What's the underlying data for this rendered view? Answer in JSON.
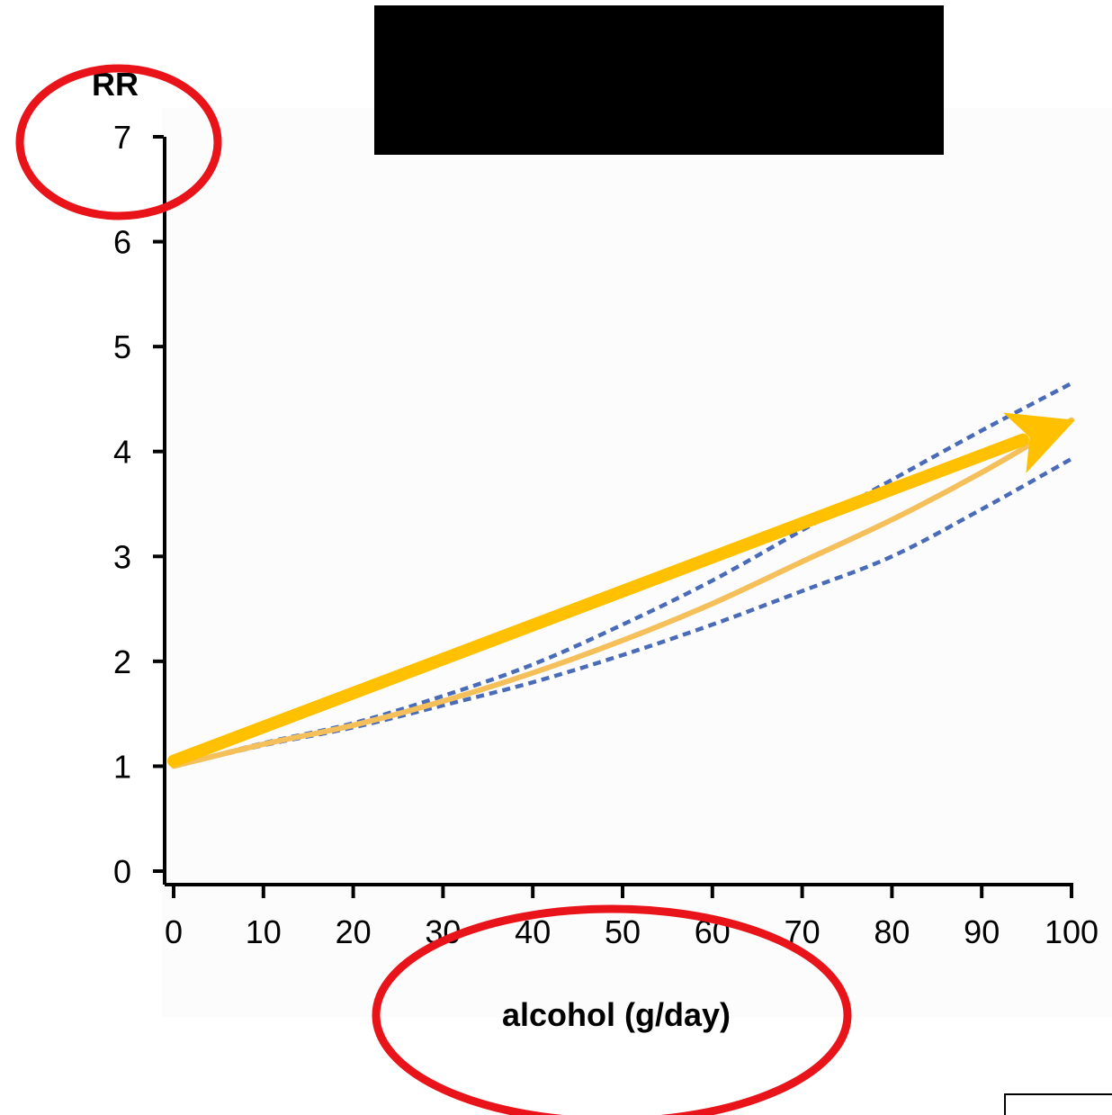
{
  "chart_data": {
    "type": "line",
    "title": "",
    "xlabel": "alcohol (g/day)",
    "ylabel": "RR",
    "xlim": [
      0,
      100
    ],
    "ylim": [
      0,
      7
    ],
    "xticks": [
      "0",
      "10",
      "20",
      "30",
      "40",
      "50",
      "60",
      "70",
      "80",
      "90",
      "100"
    ],
    "yticks": [
      "0",
      "1",
      "2",
      "3",
      "4",
      "5",
      "6",
      "7"
    ],
    "grid": false,
    "x": [
      0,
      10,
      20,
      30,
      40,
      50,
      60,
      70,
      80,
      90,
      100
    ],
    "series": [
      {
        "role": "estimate",
        "style": "solid",
        "color": "#f5bf5a",
        "values": [
          1.0,
          1.21,
          1.39,
          1.62,
          1.89,
          2.2,
          2.55,
          2.95,
          3.35,
          3.8,
          4.3
        ]
      },
      {
        "role": "upper-bound",
        "style": "dotted",
        "color": "#4a6cb8",
        "values": [
          1.0,
          1.22,
          1.41,
          1.67,
          1.97,
          2.35,
          2.77,
          3.25,
          3.73,
          4.2,
          4.65
        ]
      },
      {
        "role": "lower-bound",
        "style": "dotted",
        "color": "#4a6cb8",
        "values": [
          1.0,
          1.2,
          1.37,
          1.58,
          1.8,
          2.06,
          2.35,
          2.67,
          3.0,
          3.45,
          3.93
        ]
      }
    ],
    "trend_arrow": {
      "color": "#ffc000",
      "from": [
        0,
        1.05
      ],
      "to": [
        100,
        4.3
      ]
    },
    "annotations": [
      {
        "type": "circle",
        "target": "y-axis-label",
        "color": "#e8141a"
      },
      {
        "type": "circle",
        "target": "x-axis-label",
        "color": "#e8141a"
      }
    ],
    "redaction": {
      "color": "#000000"
    }
  }
}
